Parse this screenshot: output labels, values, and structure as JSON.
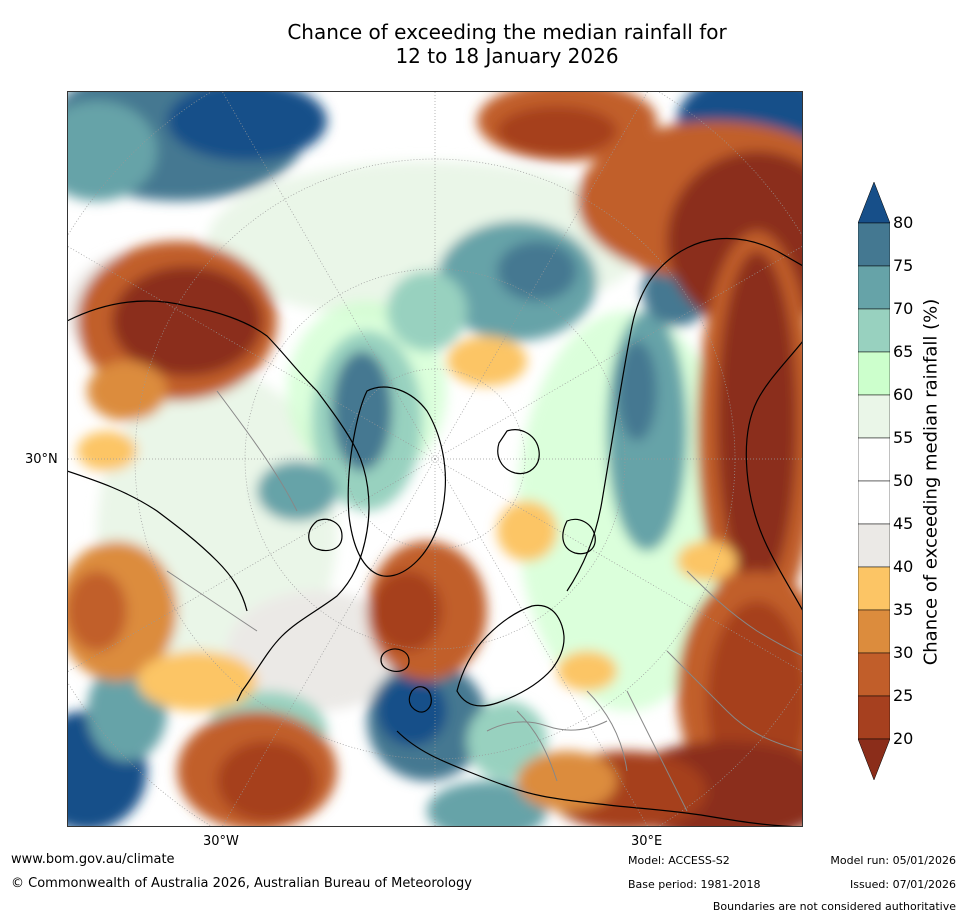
{
  "title": {
    "line1": "Chance of exceeding the median rainfall for",
    "line2": "12 to 18 January 2026"
  },
  "map": {
    "projection": "north-polar-stereographic",
    "axis_labels": {
      "left_lat": "30°N",
      "bottom_left_lon": "30°W",
      "bottom_right_lon": "30°E"
    }
  },
  "colorbar": {
    "label": "Chance of exceeding median rainfall (%)",
    "ticks": [
      "20",
      "25",
      "30",
      "35",
      "40",
      "45",
      "50",
      "55",
      "60",
      "65",
      "70",
      "75",
      "80"
    ],
    "colors": {
      "below_20": "#8b2d1a",
      "20_25": "#a6401f",
      "25_30": "#c15e2a",
      "30_35": "#dc8c3d",
      "35_40": "#fcc565",
      "40_45": "#ebe9e6",
      "45_50": "#ffffff",
      "50_55": "#ffffff",
      "55_60": "#eaf6e8",
      "60_65": "#ccffcc",
      "65_70": "#98d1bf",
      "70_75": "#66a3a8",
      "75_80": "#447891",
      "above_80": "#174f89"
    }
  },
  "footer": {
    "website": "www.bom.gov.au/climate",
    "copyright": "© Commonwealth of Australia 2026, Australian Bureau of Meteorology",
    "model": "Model: ACCESS-S2",
    "model_run": "Model run: 05/01/2026",
    "base_period": "Base period: 1981-2018",
    "issued": "Issued: 07/01/2026",
    "disclaimer": "Boundaries are not considered authoritative"
  }
}
